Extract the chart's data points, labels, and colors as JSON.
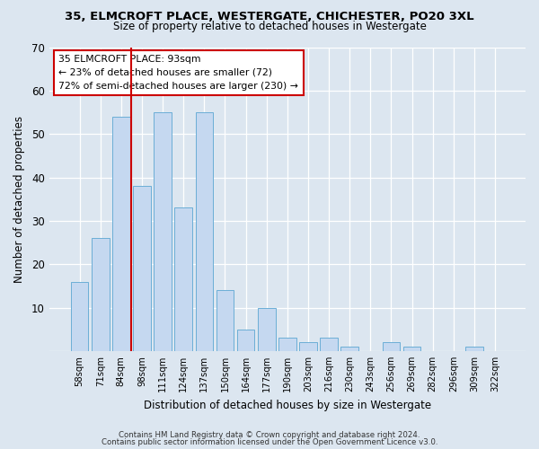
{
  "title": "35, ELMCROFT PLACE, WESTERGATE, CHICHESTER, PO20 3XL",
  "subtitle": "Size of property relative to detached houses in Westergate",
  "xlabel": "Distribution of detached houses by size in Westergate",
  "ylabel": "Number of detached properties",
  "categories": [
    "58sqm",
    "71sqm",
    "84sqm",
    "98sqm",
    "111sqm",
    "124sqm",
    "137sqm",
    "150sqm",
    "164sqm",
    "177sqm",
    "190sqm",
    "203sqm",
    "216sqm",
    "230sqm",
    "243sqm",
    "256sqm",
    "269sqm",
    "282sqm",
    "296sqm",
    "309sqm",
    "322sqm"
  ],
  "values": [
    16,
    26,
    54,
    38,
    55,
    33,
    55,
    14,
    5,
    10,
    3,
    2,
    3,
    1,
    0,
    2,
    1,
    0,
    0,
    1,
    0
  ],
  "bar_color": "#c5d8f0",
  "bar_edge_color": "#6baed6",
  "property_line_x": 2.5,
  "annotation_line1": "35 ELMCROFT PLACE: 93sqm",
  "annotation_line2": "← 23% of detached houses are smaller (72)",
  "annotation_line3": "72% of semi-detached houses are larger (230) →",
  "vline_color": "#cc0000",
  "annotation_box_facecolor": "#ffffff",
  "annotation_box_edgecolor": "#cc0000",
  "footer1": "Contains HM Land Registry data © Crown copyright and database right 2024.",
  "footer2": "Contains public sector information licensed under the Open Government Licence v3.0.",
  "bg_color": "#dce6f0",
  "plot_bg_color": "#dce6f0",
  "ylim": [
    0,
    70
  ],
  "yticks": [
    0,
    10,
    20,
    30,
    40,
    50,
    60,
    70
  ]
}
